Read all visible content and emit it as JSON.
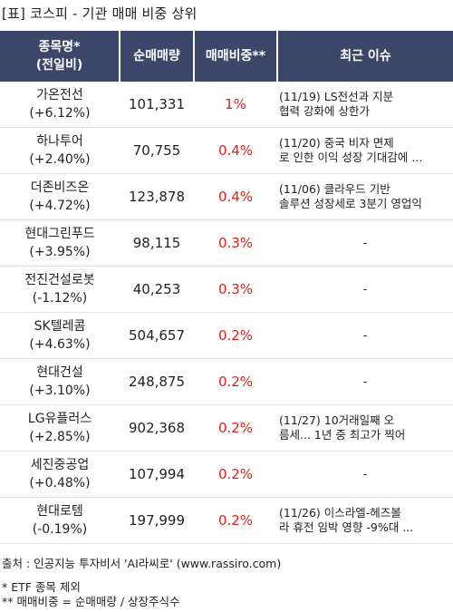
{
  "title": "[표] 코스피 - 기관 매매 비중 상위",
  "headers": {
    "name_line1": "종목명*",
    "name_line2": "(전일비)",
    "volume": "순매매량",
    "ratio": "매매비중**",
    "issue": "최근 이슈"
  },
  "rows": [
    {
      "name": "가온전선",
      "change": "(+6.12%)",
      "volume": "101,331",
      "ratio": "1%",
      "issue1": "(11/19) LS전선과 지분",
      "issue2": "협력 강화에 상한가"
    },
    {
      "name": "하나투어",
      "change": "(+2.40%)",
      "volume": "70,755",
      "ratio": "0.4%",
      "issue1": "(11/20) 중국 비자 면제",
      "issue2": "로 인한 이익 성장 기대감에 ..."
    },
    {
      "name": "더존비즈온",
      "change": "(+4.72%)",
      "volume": "123,878",
      "ratio": "0.4%",
      "issue1": "(11/06) 클라우드 기반",
      "issue2": "솔루션 성장세로 3분기 영업익"
    },
    {
      "name": "현대그린푸드",
      "change": "(+3.95%)",
      "volume": "98,115",
      "ratio": "0.3%",
      "issue1": "-",
      "issue2": ""
    },
    {
      "name": "전진건설로봇",
      "change": "(-1.12%)",
      "volume": "40,253",
      "ratio": "0.3%",
      "issue1": "-",
      "issue2": ""
    },
    {
      "name": "SK텔레콤",
      "change": "(+4.63%)",
      "volume": "504,657",
      "ratio": "0.2%",
      "issue1": "-",
      "issue2": ""
    },
    {
      "name": "현대건설",
      "change": "(+3.10%)",
      "volume": "248,875",
      "ratio": "0.2%",
      "issue1": "-",
      "issue2": ""
    },
    {
      "name": "LG유플러스",
      "change": "(+2.85%)",
      "volume": "902,368",
      "ratio": "0.2%",
      "issue1": "(11/27) 10거래일째 오",
      "issue2": "름세... 1년 중 최고가 찍어"
    },
    {
      "name": "세진중공업",
      "change": "(+0.48%)",
      "volume": "107,994",
      "ratio": "0.2%",
      "issue1": "-",
      "issue2": ""
    },
    {
      "name": "현대로템",
      "change": "(-0.19%)",
      "volume": "197,999",
      "ratio": "0.2%",
      "issue1": "(11/26) 이스라엘-헤즈볼",
      "issue2": "라 휴전 임박 영향 -9%대 ..."
    }
  ],
  "footer": {
    "source": "출처 : 인공지능 투자비서 'AI라씨로' (www.rassiro.com)",
    "note1": "* ETF 종목 제외",
    "note2": "** 매매비중 = 순매매량 / 상장주식수"
  },
  "colors": {
    "header_bg": "#3b4668",
    "ratio_text": "#e0201b"
  }
}
